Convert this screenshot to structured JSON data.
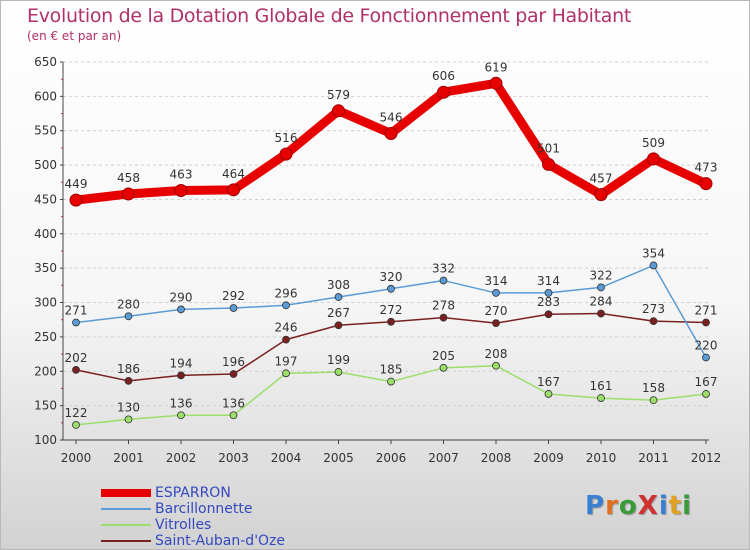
{
  "title": "Evolution de la Dotation Globale de Fonctionnement par Habitant",
  "subtitle": "(en € et par an)",
  "brand": "ProXiti",
  "colors": {
    "title": "#b0306a",
    "legend_text": "#3448c0",
    "axis": "#444444",
    "grid": "#d0d0d0"
  },
  "chart_data": {
    "type": "line",
    "x": [
      "2000",
      "2001",
      "2002",
      "2003",
      "2004",
      "2005",
      "2006",
      "2007",
      "2008",
      "2009",
      "2010",
      "2011",
      "2012"
    ],
    "ylim": [
      100,
      650
    ],
    "yticks": [
      "100",
      "150",
      "200",
      "250",
      "300",
      "350",
      "400",
      "450",
      "500",
      "550",
      "600",
      "650"
    ],
    "grid": "horizontal dashed",
    "legend_position": "bottom-left",
    "series": [
      {
        "name": "ESPARRON",
        "color": "#e60000",
        "values": [
          449,
          458,
          463,
          464,
          516,
          579,
          546,
          606,
          619,
          501,
          457,
          509,
          473
        ]
      },
      {
        "name": "Barcillonnette",
        "color": "#5b9bd5",
        "values": [
          271,
          280,
          290,
          292,
          296,
          308,
          320,
          332,
          314,
          314,
          322,
          354,
          220
        ]
      },
      {
        "name": "Vitrolles",
        "color": "#9cde6b",
        "values": [
          122,
          130,
          136,
          136,
          197,
          199,
          185,
          205,
          208,
          167,
          161,
          158,
          167
        ]
      },
      {
        "name": "Saint-Auban-d'Oze",
        "color": "#7a2020",
        "values": [
          202,
          186,
          194,
          196,
          246,
          267,
          272,
          278,
          270,
          283,
          284,
          273,
          271
        ]
      }
    ]
  }
}
